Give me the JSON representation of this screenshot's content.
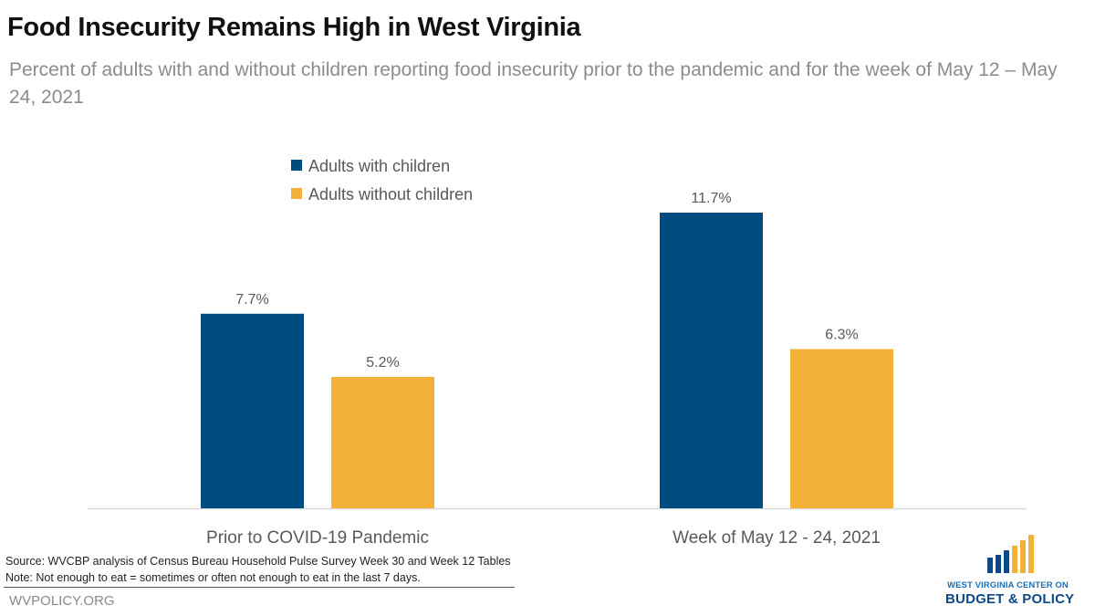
{
  "header": {
    "title": "Food Insecurity Remains High in West Virginia",
    "subtitle": "Percent of adults with and without children reporting food insecurity prior to the pandemic and for the week of May 12 – May 24, 2021"
  },
  "chart_data": {
    "type": "bar",
    "title": "Food Insecurity Remains High in West Virginia",
    "subtitle": "Percent of adults with and without children reporting food insecurity prior to the pandemic and for the week of May 12 – May 24, 2021",
    "xlabel": "",
    "ylabel": "",
    "categories": [
      "Prior to COVID-19 Pandemic",
      "Week of May 12 - 24, 2021"
    ],
    "series": [
      {
        "name": "Adults with children",
        "color": "#004c80",
        "values": [
          7.7,
          11.7
        ],
        "labels": [
          "7.7%",
          "11.7%"
        ]
      },
      {
        "name": "Adults without children",
        "color": "#f4b137",
        "values": [
          5.2,
          6.3
        ],
        "labels": [
          "5.2%",
          "6.3%"
        ]
      }
    ],
    "ylim": [
      0,
      11.7
    ],
    "grid": false,
    "legend": "top-center-left",
    "data_labels": true
  },
  "footer": {
    "source": "Source:  WVCBP analysis of Census Bureau Household Pulse Survey Week 30 and Week 12 Tables",
    "note": "Note: Not enough to eat = sometimes or often not enough to eat in the last 7 days.",
    "site": "WVPOLICY.ORG"
  },
  "logo": {
    "line1": "WEST VIRGINIA CENTER ON",
    "line2": "BUDGET & POLICY",
    "colors": {
      "blue": "#0b4a86",
      "gold": "#f4b137"
    }
  }
}
